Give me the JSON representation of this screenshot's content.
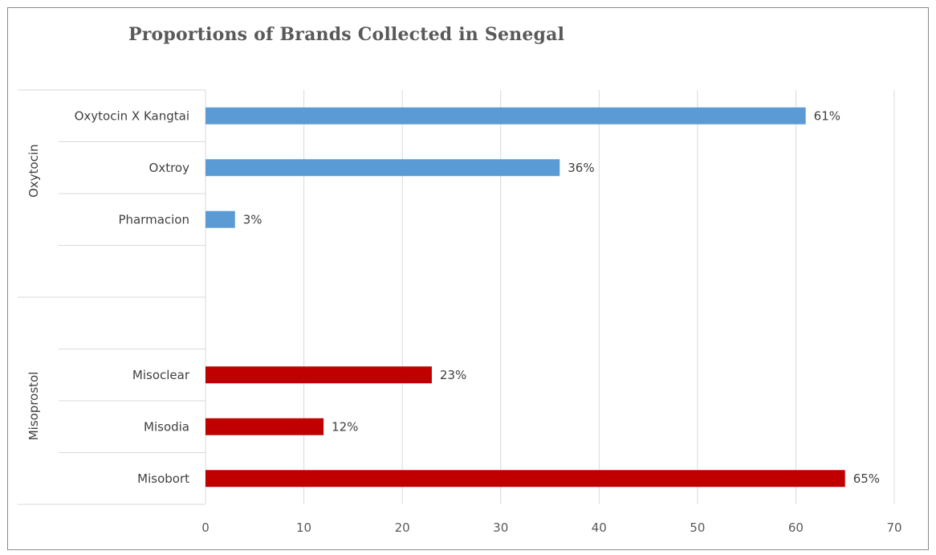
{
  "chart_data": {
    "type": "bar",
    "orientation": "horizontal",
    "title": "Proportions of Brands Collected in Senegal",
    "xlabel": "",
    "ylabel": "",
    "xlim": [
      0,
      70
    ],
    "x_ticks": [
      0,
      10,
      20,
      30,
      40,
      50,
      60,
      70
    ],
    "grid": true,
    "legend": "none",
    "groups": [
      {
        "name": "Oxytocin",
        "color": "#5b9bd5",
        "categories": [
          "Oxytocin X Kangtai",
          "Oxtroy",
          "Pharmacion",
          ""
        ],
        "values": [
          61,
          36,
          3,
          null
        ],
        "labels": [
          "61%",
          "36%",
          "3%",
          ""
        ]
      },
      {
        "name": "Misoprostol",
        "color": "#c00000",
        "categories": [
          "",
          "Misoclear",
          "Misodia",
          "Misobort"
        ],
        "values": [
          null,
          23,
          12,
          65
        ],
        "labels": [
          "",
          "23%",
          "12%",
          "65%"
        ]
      }
    ]
  }
}
